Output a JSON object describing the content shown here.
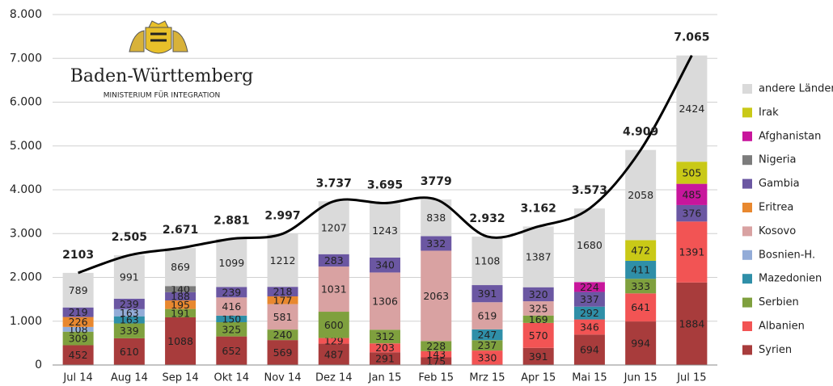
{
  "chart_data": {
    "type": "stacked-bar",
    "logo": {
      "name": "Baden-Württemberg",
      "subtitle": "MINISTERIUM FÜR INTEGRATION"
    },
    "categories": [
      "Jul 14",
      "Aug 14",
      "Sep 14",
      "Okt 14",
      "Nov 14",
      "Dez 14",
      "Jan 15",
      "Feb 15",
      "Mrz 15",
      "Apr 15",
      "Mai 15",
      "Jun 15",
      "Jul 15"
    ],
    "series": [
      {
        "name": "Syrien",
        "color": "#a83c3c",
        "values": [
          452,
          610,
          1088,
          652,
          569,
          487,
          291,
          175,
          0,
          391,
          694,
          994,
          1884
        ]
      },
      {
        "name": "Albanien",
        "color": "#f25454",
        "values": [
          0,
          0,
          0,
          0,
          0,
          129,
          203,
          143,
          330,
          570,
          346,
          641,
          1391
        ]
      },
      {
        "name": "Serbien",
        "color": "#7fa03e",
        "values": [
          309,
          339,
          191,
          325,
          240,
          600,
          312,
          228,
          237,
          169,
          0,
          333,
          0
        ]
      },
      {
        "name": "Mazedonien",
        "color": "#2f8fa8",
        "values": [
          0,
          163,
          0,
          150,
          0,
          0,
          0,
          0,
          247,
          0,
          292,
          411,
          0
        ]
      },
      {
        "name": "Bosnien-H.",
        "color": "#93acd8",
        "values": [
          108,
          163,
          0,
          0,
          0,
          0,
          0,
          0,
          0,
          0,
          0,
          0,
          0
        ]
      },
      {
        "name": "Kosovo",
        "color": "#d9a2a2",
        "values": [
          0,
          0,
          0,
          416,
          581,
          1031,
          1306,
          2063,
          619,
          325,
          0,
          0,
          0
        ]
      },
      {
        "name": "Eritrea",
        "color": "#e8882f",
        "values": [
          226,
          0,
          195,
          0,
          177,
          0,
          0,
          0,
          0,
          0,
          0,
          0,
          0
        ]
      },
      {
        "name": "Gambia",
        "color": "#6b57a2",
        "values": [
          219,
          239,
          188,
          239,
          218,
          283,
          340,
          332,
          391,
          320,
          337,
          0,
          376
        ]
      },
      {
        "name": "Nigeria",
        "color": "#7c7c7c",
        "values": [
          0,
          0,
          140,
          0,
          0,
          0,
          0,
          0,
          0,
          0,
          0,
          0,
          0
        ]
      },
      {
        "name": "Afghanistan",
        "color": "#c8169c",
        "values": [
          0,
          0,
          0,
          0,
          0,
          0,
          0,
          0,
          0,
          0,
          224,
          0,
          485
        ]
      },
      {
        "name": "Irak",
        "color": "#c9c917",
        "values": [
          0,
          0,
          0,
          0,
          0,
          0,
          0,
          0,
          0,
          0,
          0,
          472,
          505
        ]
      },
      {
        "name": "andere Länder",
        "color": "#dadada",
        "values": [
          789,
          991,
          869,
          1099,
          1212,
          1207,
          1243,
          838,
          1108,
          1387,
          1680,
          2058,
          2424
        ]
      }
    ],
    "totals": {
      "values": [
        2103,
        2505,
        2671,
        2881,
        2997,
        3737,
        3695,
        3779,
        2932,
        3162,
        3573,
        4909,
        7065
      ],
      "value_labels": [
        "2103",
        "2.505",
        "2.671",
        "2.881",
        "2.997",
        "3.737",
        "3.695",
        "3779",
        "2.932",
        "3.162",
        "3.573",
        "4.909",
        "7.065"
      ]
    },
    "ylim": [
      0,
      8000
    ],
    "yticks": [
      {
        "value": 0,
        "label": "0"
      },
      {
        "value": 1000,
        "label": "1.000"
      },
      {
        "value": 2000,
        "label": "2.000"
      },
      {
        "value": 3000,
        "label": "3.000"
      },
      {
        "value": 4000,
        "label": "4.000"
      },
      {
        "value": 5000,
        "label": "5.000"
      },
      {
        "value": 6000,
        "label": "6.000"
      },
      {
        "value": 7000,
        "label": "7.000"
      },
      {
        "value": 8000,
        "label": "8.000"
      }
    ],
    "grid": true
  }
}
